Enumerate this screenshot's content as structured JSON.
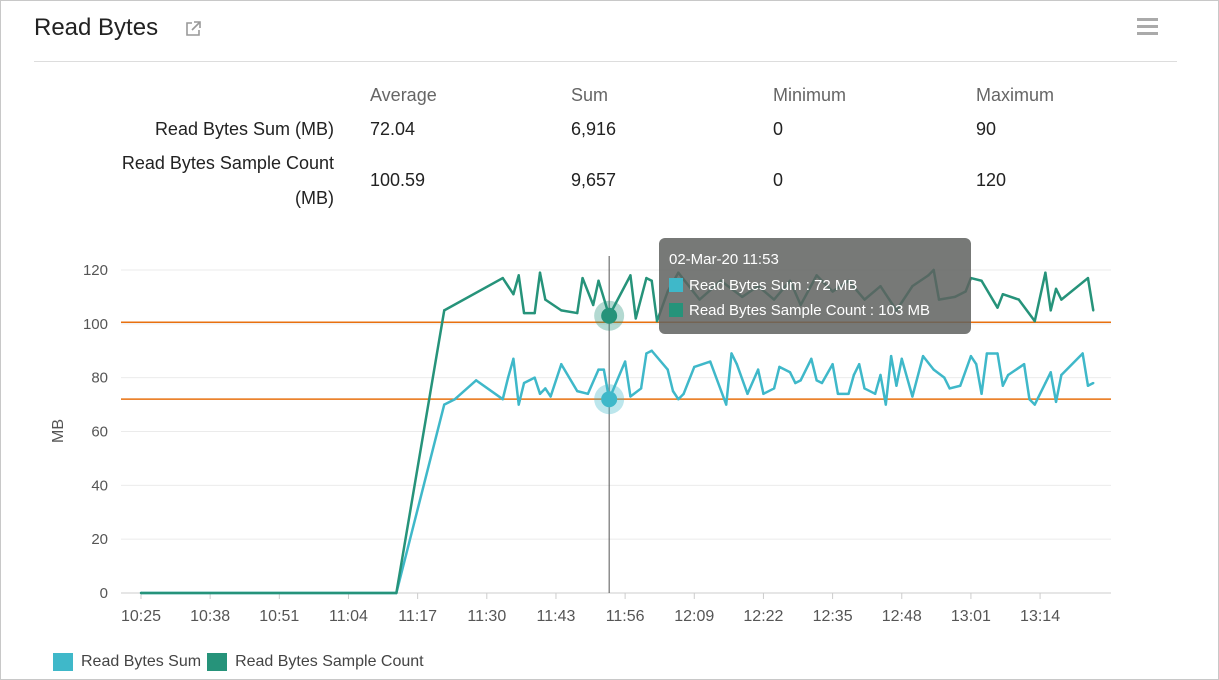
{
  "header": {
    "title": "Read Bytes",
    "external_icon": "external-link-icon",
    "menu_icon": "hamburger-menu-icon"
  },
  "stats": {
    "columns": [
      "Average",
      "Sum",
      "Minimum",
      "Maximum"
    ],
    "rows": [
      {
        "label": "Read Bytes Sum (MB)",
        "values": [
          "72.04",
          "6,916",
          "0",
          "90"
        ]
      },
      {
        "label_line1": "Read Bytes Sample Count",
        "label_line2": "(MB)",
        "values": [
          "100.59",
          "9,657",
          "0",
          "120"
        ]
      }
    ]
  },
  "tooltip": {
    "time": "02-Mar-20 11:53",
    "line1": "Read Bytes Sum : 72 MB",
    "line2": "Read Bytes Sample Count : 103 MB"
  },
  "legend": [
    "Read Bytes Sum",
    "Read Bytes Sample Count"
  ],
  "chart_data": {
    "type": "line",
    "ylabel": "MB",
    "ylim": [
      0,
      120
    ],
    "yticks": [
      "0",
      "20",
      "40",
      "60",
      "80",
      "100",
      "120"
    ],
    "xticks": [
      "10:25",
      "10:38",
      "10:51",
      "11:04",
      "11:17",
      "11:30",
      "11:43",
      "11:56",
      "12:09",
      "12:22",
      "12:35",
      "12:48",
      "13:01",
      "13:14"
    ],
    "grid": true,
    "legend_position": "bottom-left",
    "reference_lines": [
      {
        "value": 72.04,
        "color": "#e8700f"
      },
      {
        "value": 100.59,
        "color": "#e8700f"
      }
    ],
    "crosshair_time": "11:53",
    "series": [
      {
        "name": "Read Bytes Sum",
        "color": "#3fb8c9",
        "points": [
          [
            "10:25",
            0
          ],
          [
            "11:13",
            0
          ],
          [
            "11:22",
            70
          ],
          [
            "11:24",
            72
          ],
          [
            "11:28",
            79
          ],
          [
            "11:33",
            72
          ],
          [
            "11:34",
            80
          ],
          [
            "11:35",
            87
          ],
          [
            "11:36",
            70
          ],
          [
            "11:37",
            78
          ],
          [
            "11:39",
            80
          ],
          [
            "11:40",
            74
          ],
          [
            "11:41",
            76
          ],
          [
            "11:42",
            73
          ],
          [
            "11:44",
            85
          ],
          [
            "11:47",
            75
          ],
          [
            "11:49",
            74
          ],
          [
            "11:51",
            83
          ],
          [
            "11:52",
            83
          ],
          [
            "11:53",
            72
          ],
          [
            "11:56",
            86
          ],
          [
            "11:57",
            73
          ],
          [
            "11:59",
            76
          ],
          [
            "12:00",
            89
          ],
          [
            "12:01",
            90
          ],
          [
            "12:04",
            83
          ],
          [
            "12:05",
            75
          ],
          [
            "12:06",
            72
          ],
          [
            "12:07",
            74
          ],
          [
            "12:09",
            84
          ],
          [
            "12:12",
            86
          ],
          [
            "12:15",
            70
          ],
          [
            "12:16",
            89
          ],
          [
            "12:17",
            85
          ],
          [
            "12:19",
            74
          ],
          [
            "12:21",
            83
          ],
          [
            "12:22",
            74
          ],
          [
            "12:24",
            76
          ],
          [
            "12:25",
            84
          ],
          [
            "12:27",
            82
          ],
          [
            "12:28",
            78
          ],
          [
            "12:29",
            79
          ],
          [
            "12:31",
            87
          ],
          [
            "12:32",
            79
          ],
          [
            "12:33",
            78
          ],
          [
            "12:35",
            85
          ],
          [
            "12:36",
            74
          ],
          [
            "12:38",
            74
          ],
          [
            "12:39",
            81
          ],
          [
            "12:40",
            85
          ],
          [
            "12:41",
            76
          ],
          [
            "12:43",
            74
          ],
          [
            "12:44",
            81
          ],
          [
            "12:45",
            70
          ],
          [
            "12:46",
            88
          ],
          [
            "12:47",
            77
          ],
          [
            "12:48",
            87
          ],
          [
            "12:50",
            73
          ],
          [
            "12:52",
            88
          ],
          [
            "12:54",
            83
          ],
          [
            "12:56",
            80
          ],
          [
            "12:57",
            76
          ],
          [
            "12:59",
            77
          ],
          [
            "13:01",
            88
          ],
          [
            "13:02",
            85
          ],
          [
            "13:03",
            74
          ],
          [
            "13:04",
            89
          ],
          [
            "13:06",
            89
          ],
          [
            "13:07",
            77
          ],
          [
            "13:08",
            81
          ],
          [
            "13:11",
            85
          ],
          [
            "13:12",
            72
          ],
          [
            "13:13",
            70
          ],
          [
            "13:15",
            78
          ],
          [
            "13:16",
            82
          ],
          [
            "13:17",
            71
          ],
          [
            "13:18",
            81
          ],
          [
            "13:22",
            89
          ],
          [
            "13:23",
            77
          ],
          [
            "13:24",
            78
          ]
        ]
      },
      {
        "name": "Read Bytes Sample Count",
        "color": "#26937a",
        "points": [
          [
            "10:25",
            0
          ],
          [
            "11:13",
            0
          ],
          [
            "11:22",
            105
          ],
          [
            "11:33",
            117
          ],
          [
            "11:35",
            111
          ],
          [
            "11:36",
            118
          ],
          [
            "11:37",
            104
          ],
          [
            "11:39",
            104
          ],
          [
            "11:40",
            119
          ],
          [
            "11:41",
            109
          ],
          [
            "11:44",
            105
          ],
          [
            "11:47",
            104
          ],
          [
            "11:48",
            117
          ],
          [
            "11:50",
            107
          ],
          [
            "11:51",
            116
          ],
          [
            "11:53",
            103
          ],
          [
            "11:57",
            118
          ],
          [
            "11:58",
            102
          ],
          [
            "12:00",
            117
          ],
          [
            "12:01",
            116
          ],
          [
            "12:02",
            101
          ],
          [
            "12:04",
            112
          ],
          [
            "12:06",
            119
          ],
          [
            "12:10",
            109
          ],
          [
            "12:14",
            116
          ],
          [
            "12:18",
            110
          ],
          [
            "12:21",
            114
          ],
          [
            "12:24",
            109
          ],
          [
            "12:27",
            116
          ],
          [
            "12:29",
            107
          ],
          [
            "12:32",
            118
          ],
          [
            "12:35",
            112
          ],
          [
            "12:38",
            116
          ],
          [
            "12:41",
            109
          ],
          [
            "12:44",
            114
          ],
          [
            "12:47",
            105
          ],
          [
            "12:50",
            114
          ],
          [
            "12:53",
            118
          ],
          [
            "12:54",
            120
          ],
          [
            "12:55",
            109
          ],
          [
            "12:58",
            110
          ],
          [
            "13:00",
            112
          ],
          [
            "13:01",
            117
          ],
          [
            "13:03",
            116
          ],
          [
            "13:06",
            106
          ],
          [
            "13:07",
            111
          ],
          [
            "13:10",
            109
          ],
          [
            "13:13",
            101
          ],
          [
            "13:15",
            119
          ],
          [
            "13:16",
            105
          ],
          [
            "13:17",
            113
          ],
          [
            "13:18",
            109
          ],
          [
            "13:23",
            117
          ],
          [
            "13:24",
            105
          ]
        ]
      }
    ]
  }
}
